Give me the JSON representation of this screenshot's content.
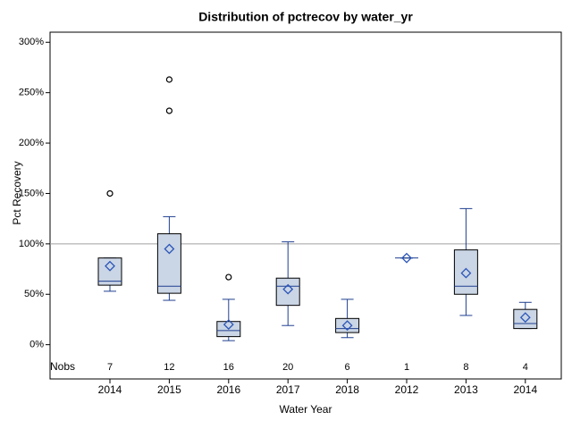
{
  "chart_data": {
    "type": "box",
    "title": "Distribution of pctrecov by water_yr",
    "x_label": "Water Year",
    "y_label": "Pct Recovery",
    "categories": [
      "2014",
      "2015",
      "2016",
      "2017",
      "2018",
      "2012",
      "2013",
      "2014"
    ],
    "boxes": [
      {
        "whisker_low": 53,
        "q1": 59,
        "median": 63,
        "q3": 86,
        "whisker_high": 86,
        "mean": 78,
        "outliers": [
          150
        ]
      },
      {
        "whisker_low": 44,
        "q1": 51,
        "median": 58,
        "q3": 110,
        "whisker_high": 127,
        "mean": 95,
        "outliers": [
          232,
          263
        ]
      },
      {
        "whisker_low": 4,
        "q1": 8,
        "median": 14,
        "q3": 23,
        "whisker_high": 45,
        "mean": 20,
        "outliers": [
          67
        ]
      },
      {
        "whisker_low": 19,
        "q1": 39,
        "median": 58,
        "q3": 66,
        "whisker_high": 102,
        "mean": 55,
        "outliers": []
      },
      {
        "whisker_low": 7,
        "q1": 12,
        "median": 16,
        "q3": 26,
        "whisker_high": 45,
        "mean": 19,
        "outliers": []
      },
      {
        "whisker_low": 86,
        "q1": 86,
        "median": 86,
        "q3": 86,
        "whisker_high": 86,
        "mean": 86,
        "outliers": []
      },
      {
        "whisker_low": 29,
        "q1": 50,
        "median": 58,
        "q3": 94,
        "whisker_high": 135,
        "mean": 71,
        "outliers": []
      },
      {
        "whisker_low": 16,
        "q1": 16,
        "median": 21,
        "q3": 35,
        "whisker_high": 42,
        "mean": 27,
        "outliers": []
      }
    ],
    "nobs_label": "Nobs",
    "nobs": [
      7,
      12,
      16,
      20,
      6,
      1,
      8,
      4
    ],
    "refline": 100,
    "ylim": [
      -34,
      310
    ],
    "yticks": [
      {
        "value": 0,
        "label": "0%"
      },
      {
        "value": 50,
        "label": "50%"
      },
      {
        "value": 100,
        "label": "100%"
      },
      {
        "value": 150,
        "label": "150%"
      },
      {
        "value": 200,
        "label": "200%"
      },
      {
        "value": 250,
        "label": "250%"
      },
      {
        "value": 300,
        "label": "300%"
      }
    ],
    "box_color": "#cad5e5",
    "line_color": "#1f3f8f",
    "mean_color": "#2a55b8",
    "outlier_color": "#000000",
    "refline_color": "#a0a0a0"
  }
}
